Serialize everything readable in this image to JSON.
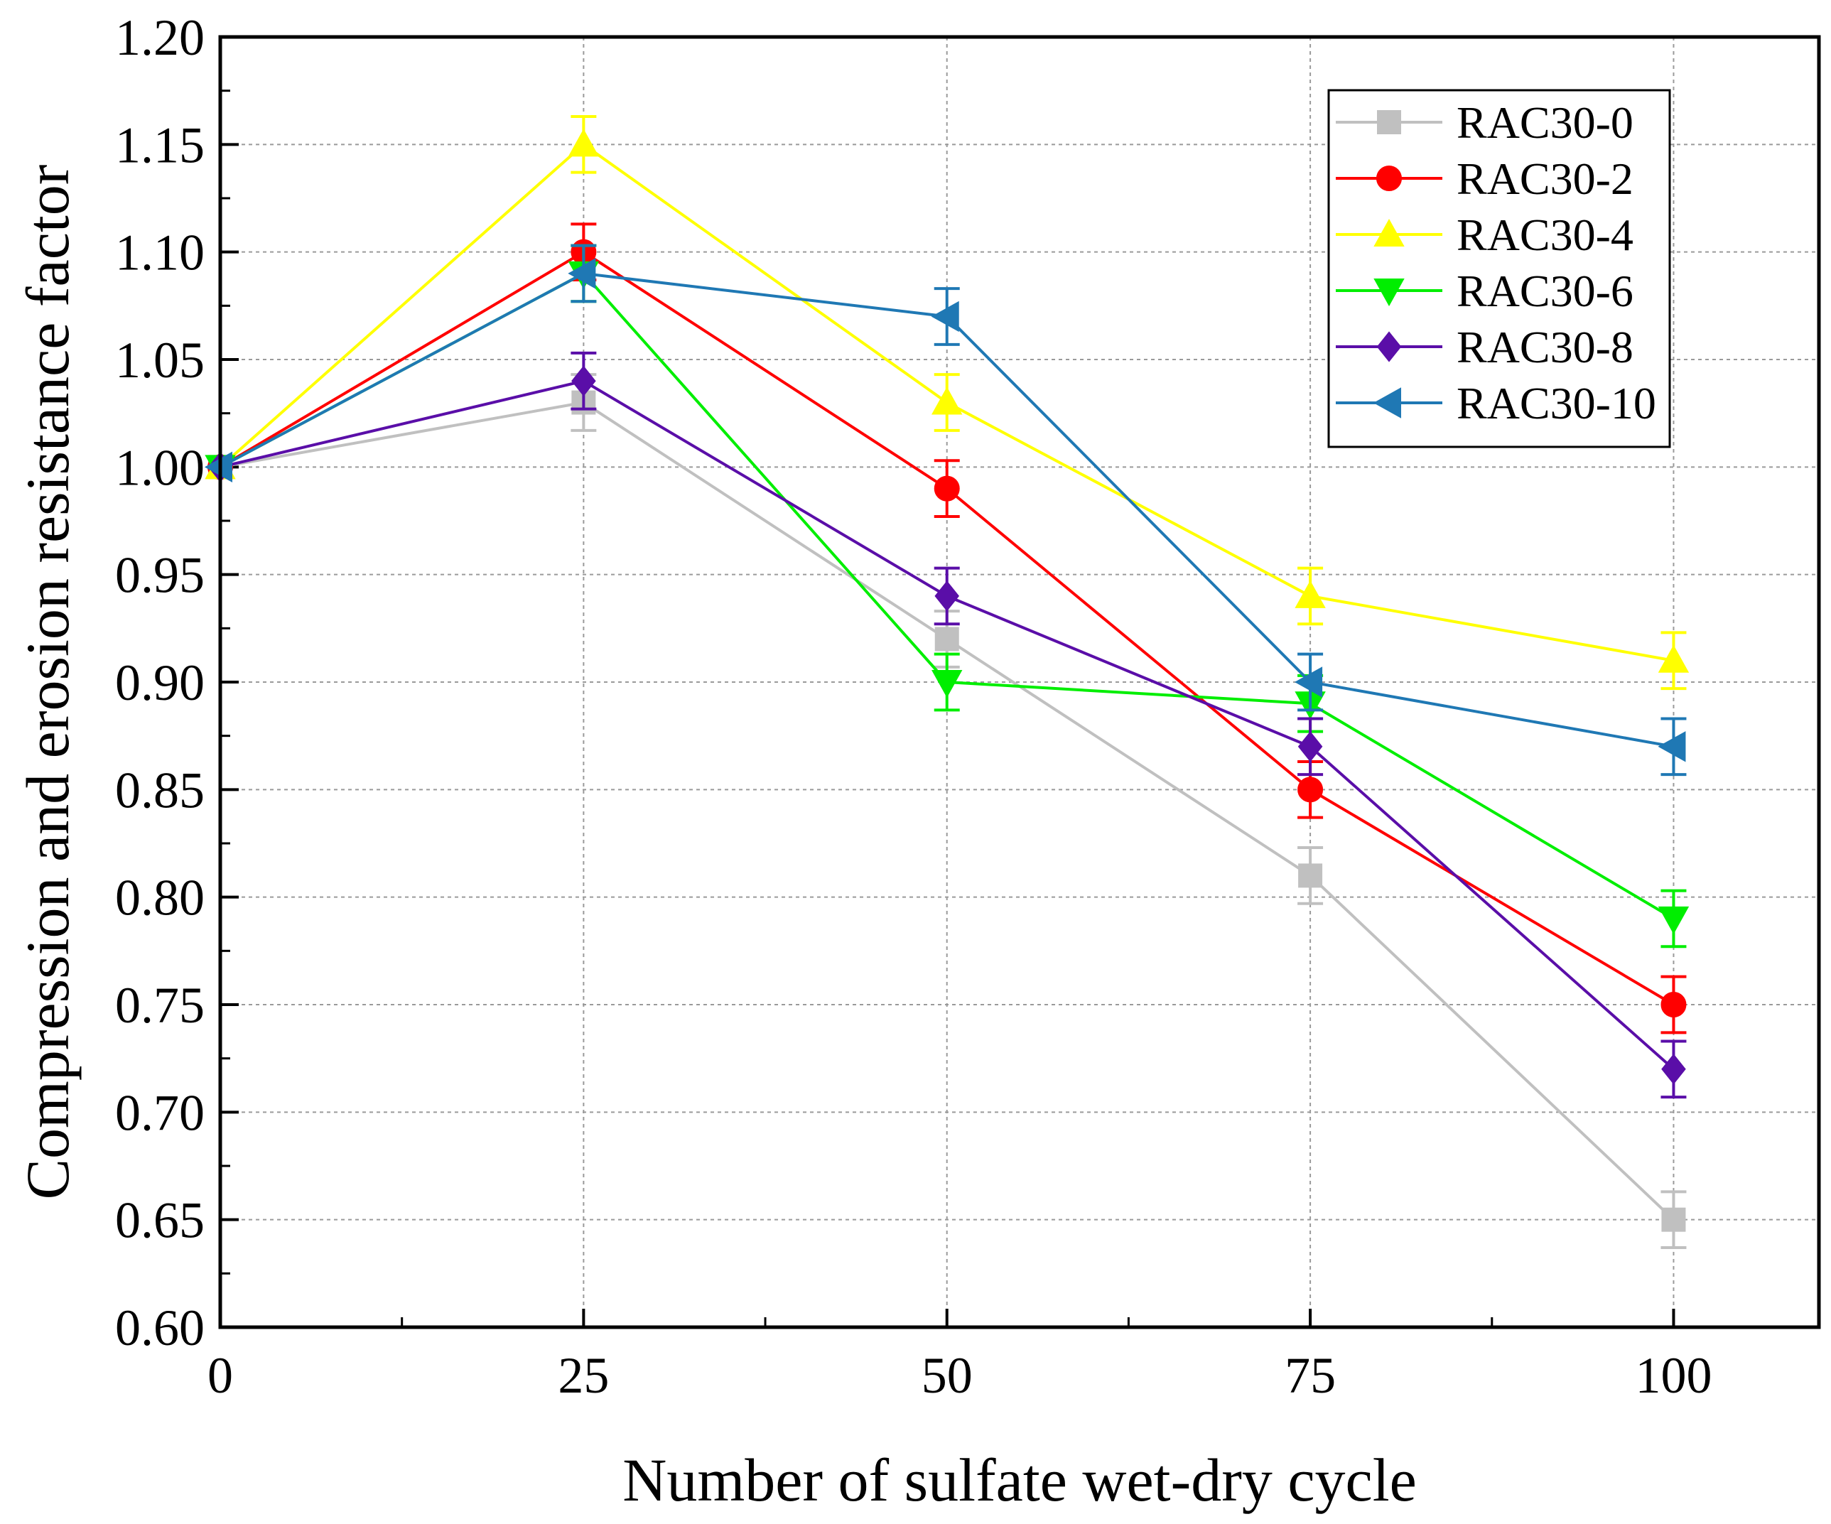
{
  "chart_data": {
    "type": "line",
    "title": "",
    "xlabel": "Number of sulfate wet-dry cycle",
    "ylabel": "Compression and erosion resistance factor",
    "x": [
      0,
      25,
      50,
      75,
      100
    ],
    "x_ticks": [
      "0",
      "25",
      "50",
      "75",
      "100"
    ],
    "y_ticks": [
      "0.60",
      "0.65",
      "0.70",
      "0.75",
      "0.80",
      "0.85",
      "0.90",
      "0.95",
      "1.00",
      "1.05",
      "1.10",
      "1.15",
      "1.20"
    ],
    "xlim": [
      0,
      110
    ],
    "ylim": [
      0.6,
      1.2
    ],
    "grid": true,
    "legend_position": "top-right",
    "error_bar": 0.013,
    "series": [
      {
        "name": "RAC30-0",
        "marker": "square",
        "color": "#c0c0c0",
        "values": [
          1.0,
          1.03,
          0.92,
          0.81,
          0.65
        ]
      },
      {
        "name": "RAC30-2",
        "marker": "circle",
        "color": "#ff0000",
        "values": [
          1.0,
          1.1,
          0.99,
          0.85,
          0.75
        ]
      },
      {
        "name": "RAC30-4",
        "marker": "triangle-up",
        "color": "#ffff00",
        "values": [
          1.0,
          1.15,
          1.03,
          0.94,
          0.91
        ]
      },
      {
        "name": "RAC30-6",
        "marker": "triangle-down",
        "color": "#00ee00",
        "values": [
          1.0,
          1.09,
          0.9,
          0.89,
          0.79
        ]
      },
      {
        "name": "RAC30-8",
        "marker": "diamond",
        "color": "#5a0ea8",
        "values": [
          1.0,
          1.04,
          0.94,
          0.87,
          0.72
        ]
      },
      {
        "name": "RAC30-10",
        "marker": "triangle-left",
        "color": "#1f78b4",
        "values": [
          1.0,
          1.09,
          1.07,
          0.9,
          0.87
        ]
      }
    ]
  }
}
